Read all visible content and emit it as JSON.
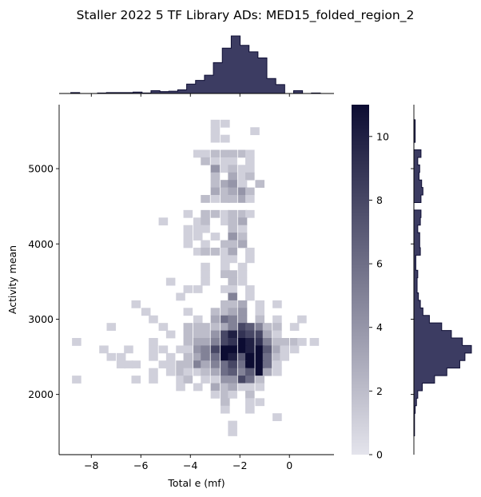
{
  "chart_data": {
    "type": "heatmap",
    "title": "Staller 2022 5 TF Library ADs: MED15_folded_region_2",
    "xlabel": "Total e (mf)",
    "ylabel": "Activity mean",
    "xlim": [
      -9.3,
      1.8
    ],
    "ylim": [
      1200,
      5850
    ],
    "x_ticks": [
      -8,
      -6,
      -4,
      -2,
      0
    ],
    "y_ticks": [
      2000,
      3000,
      4000,
      5000
    ],
    "x_tick_labels": [
      "−8",
      "−6",
      "−4",
      "−2",
      "0"
    ],
    "y_tick_labels": [
      "2000",
      "3000",
      "4000",
      "5000"
    ],
    "colorbar": {
      "min": 0,
      "max": 11,
      "ticks": [
        0,
        2,
        4,
        6,
        8,
        10
      ],
      "tick_labels": [
        "0",
        "2",
        "4",
        "6",
        "8",
        "10"
      ]
    },
    "colors": {
      "low": "#e4e4ec",
      "high": "#0c0c32",
      "marginal": "#3c3c62",
      "edge": "#0e0e34"
    },
    "bin_x_origin": -8.65,
    "bin_width": 0.36,
    "bin_y_origin": 1400,
    "bin_height": 100,
    "grid": false,
    "cells": [
      [
        -1.4,
        5500,
        1
      ],
      [
        -3.0,
        5600,
        1
      ],
      [
        -2.6,
        5600,
        1
      ],
      [
        -3.0,
        5500,
        1
      ],
      [
        -2.6,
        5400,
        1
      ],
      [
        -3.0,
        5400,
        1
      ],
      [
        -3.7,
        5200,
        1
      ],
      [
        -3.4,
        5200,
        1
      ],
      [
        -3.0,
        5200,
        2
      ],
      [
        -2.6,
        5200,
        2
      ],
      [
        -2.3,
        5200,
        2
      ],
      [
        -1.9,
        5200,
        2
      ],
      [
        -1.6,
        5200,
        1
      ],
      [
        -3.4,
        5100,
        2
      ],
      [
        -3.0,
        5100,
        1
      ],
      [
        -2.6,
        5100,
        1
      ],
      [
        -2.3,
        5100,
        1
      ],
      [
        -1.6,
        5100,
        1
      ],
      [
        -3.0,
        5000,
        4
      ],
      [
        -2.6,
        5000,
        1
      ],
      [
        -2.3,
        5000,
        2
      ],
      [
        -1.9,
        5000,
        1
      ],
      [
        -1.6,
        5000,
        1
      ],
      [
        -3.0,
        4900,
        2
      ],
      [
        -2.3,
        4900,
        3
      ],
      [
        -1.9,
        4900,
        1
      ],
      [
        -1.6,
        4900,
        2
      ],
      [
        -3.0,
        4800,
        2
      ],
      [
        -2.6,
        4800,
        3
      ],
      [
        -2.3,
        4800,
        4
      ],
      [
        -1.9,
        4800,
        1
      ],
      [
        -1.2,
        4800,
        2
      ],
      [
        -3.0,
        4700,
        3
      ],
      [
        -2.6,
        4700,
        2
      ],
      [
        -2.3,
        4700,
        3
      ],
      [
        -1.9,
        4700,
        4
      ],
      [
        -1.6,
        4700,
        2
      ],
      [
        -3.4,
        4600,
        2
      ],
      [
        -3.0,
        4600,
        1
      ],
      [
        -2.6,
        4600,
        2
      ],
      [
        -2.3,
        4600,
        2
      ],
      [
        -1.9,
        4600,
        3
      ],
      [
        -1.6,
        4600,
        1
      ],
      [
        -4.1,
        4400,
        1
      ],
      [
        -3.4,
        4400,
        2
      ],
      [
        -3.0,
        4400,
        2
      ],
      [
        -2.6,
        4400,
        1
      ],
      [
        -2.3,
        4400,
        2
      ],
      [
        -1.9,
        4400,
        2
      ],
      [
        -1.6,
        4400,
        1
      ],
      [
        -5.1,
        4300,
        1
      ],
      [
        -3.7,
        4300,
        1
      ],
      [
        -3.4,
        4300,
        2
      ],
      [
        -2.6,
        4300,
        1
      ],
      [
        -2.3,
        4300,
        2
      ],
      [
        -1.9,
        4300,
        3
      ],
      [
        -4.1,
        4200,
        1
      ],
      [
        -3.7,
        4200,
        1
      ],
      [
        -3.4,
        4200,
        1
      ],
      [
        -2.3,
        4200,
        2
      ],
      [
        -1.9,
        4200,
        1
      ],
      [
        -4.1,
        4100,
        1
      ],
      [
        -3.7,
        4100,
        1
      ],
      [
        -3.0,
        4100,
        1
      ],
      [
        -2.3,
        4100,
        4
      ],
      [
        -1.9,
        4100,
        2
      ],
      [
        -4.1,
        4000,
        1
      ],
      [
        -3.4,
        4000,
        1
      ],
      [
        -2.6,
        4000,
        2
      ],
      [
        -2.3,
        4000,
        2
      ],
      [
        -1.9,
        4000,
        3
      ],
      [
        -3.7,
        3900,
        1
      ],
      [
        -3.4,
        3900,
        2
      ],
      [
        -3.0,
        3900,
        2
      ],
      [
        -2.6,
        3900,
        1
      ],
      [
        -2.3,
        3900,
        3
      ],
      [
        -1.6,
        3900,
        1
      ],
      [
        -2.6,
        3800,
        1
      ],
      [
        -2.3,
        3800,
        1
      ],
      [
        -1.6,
        3800,
        1
      ],
      [
        -3.4,
        3700,
        1
      ],
      [
        -2.6,
        3700,
        1
      ],
      [
        -1.9,
        3700,
        1
      ],
      [
        -3.4,
        3600,
        1
      ],
      [
        -2.6,
        3600,
        2
      ],
      [
        -2.3,
        3600,
        2
      ],
      [
        -1.9,
        3600,
        1
      ],
      [
        -4.8,
        3500,
        1
      ],
      [
        -3.4,
        3500,
        1
      ],
      [
        -2.3,
        3500,
        2
      ],
      [
        -1.9,
        3500,
        1
      ],
      [
        -4.1,
        3400,
        1
      ],
      [
        -3.7,
        3400,
        1
      ],
      [
        -2.6,
        3400,
        1
      ],
      [
        -2.3,
        3400,
        1
      ],
      [
        -1.6,
        3400,
        1
      ],
      [
        -4.4,
        3300,
        1
      ],
      [
        -2.3,
        3300,
        5
      ],
      [
        -1.6,
        3300,
        1
      ],
      [
        -6.2,
        3200,
        1
      ],
      [
        -2.6,
        3200,
        2
      ],
      [
        -2.3,
        3200,
        2
      ],
      [
        -1.9,
        3200,
        3
      ],
      [
        -1.2,
        3200,
        1
      ],
      [
        -0.5,
        3200,
        1
      ],
      [
        -5.8,
        3100,
        1
      ],
      [
        -4.1,
        3100,
        1
      ],
      [
        -3.0,
        3100,
        2
      ],
      [
        -2.6,
        3100,
        2
      ],
      [
        -2.3,
        3100,
        3
      ],
      [
        -1.9,
        3100,
        4
      ],
      [
        -1.2,
        3100,
        1
      ],
      [
        -5.5,
        3000,
        1
      ],
      [
        -3.7,
        3000,
        1
      ],
      [
        -3.0,
        3000,
        3
      ],
      [
        -2.6,
        3000,
        6
      ],
      [
        -2.3,
        3000,
        5
      ],
      [
        -1.9,
        3000,
        4
      ],
      [
        -1.2,
        3000,
        2
      ],
      [
        -0.5,
        3000,
        1
      ],
      [
        0.5,
        3000,
        1
      ],
      [
        -7.2,
        2900,
        1
      ],
      [
        -5.1,
        2900,
        1
      ],
      [
        -4.1,
        2900,
        2
      ],
      [
        -3.7,
        2900,
        2
      ],
      [
        -3.4,
        2900,
        2
      ],
      [
        -3.0,
        2900,
        2
      ],
      [
        -2.6,
        2900,
        3
      ],
      [
        -2.3,
        2900,
        5
      ],
      [
        -1.9,
        2900,
        8
      ],
      [
        -1.6,
        2900,
        7
      ],
      [
        -1.2,
        2900,
        5
      ],
      [
        -0.9,
        2900,
        2
      ],
      [
        -0.5,
        2900,
        2
      ],
      [
        0.2,
        2900,
        1
      ],
      [
        -4.8,
        2800,
        1
      ],
      [
        -4.1,
        2800,
        2
      ],
      [
        -3.7,
        2800,
        2
      ],
      [
        -3.4,
        2800,
        2
      ],
      [
        -3.0,
        2800,
        4
      ],
      [
        -2.6,
        2800,
        8
      ],
      [
        -2.3,
        2800,
        10
      ],
      [
        -1.9,
        2800,
        9
      ],
      [
        -1.6,
        2800,
        8
      ],
      [
        -1.2,
        2800,
        8
      ],
      [
        -0.9,
        2800,
        3
      ],
      [
        -0.5,
        2800,
        1
      ],
      [
        -8.6,
        2700,
        1
      ],
      [
        -5.5,
        2700,
        1
      ],
      [
        -4.1,
        2700,
        2
      ],
      [
        -3.7,
        2700,
        3
      ],
      [
        -3.4,
        2700,
        3
      ],
      [
        -3.0,
        2700,
        5
      ],
      [
        -2.6,
        2700,
        8
      ],
      [
        -2.3,
        2700,
        9
      ],
      [
        -1.9,
        2700,
        11
      ],
      [
        -1.6,
        2700,
        10
      ],
      [
        -1.2,
        2700,
        9
      ],
      [
        -0.9,
        2700,
        5
      ],
      [
        -0.5,
        2700,
        2
      ],
      [
        -0.2,
        2700,
        2
      ],
      [
        0.2,
        2700,
        2
      ],
      [
        0.5,
        2700,
        1
      ],
      [
        1.0,
        2700,
        1
      ],
      [
        -7.5,
        2600,
        1
      ],
      [
        -6.5,
        2600,
        1
      ],
      [
        -5.5,
        2600,
        1
      ],
      [
        -5.1,
        2600,
        1
      ],
      [
        -4.4,
        2600,
        1
      ],
      [
        -4.1,
        2600,
        1
      ],
      [
        -3.7,
        2600,
        4
      ],
      [
        -3.4,
        2600,
        5
      ],
      [
        -3.0,
        2600,
        8
      ],
      [
        -2.6,
        2600,
        11
      ],
      [
        -2.3,
        2600,
        11
      ],
      [
        -1.9,
        2600,
        11
      ],
      [
        -1.6,
        2600,
        10
      ],
      [
        -1.2,
        2600,
        11
      ],
      [
        -0.9,
        2600,
        7
      ],
      [
        -0.5,
        2600,
        3
      ],
      [
        -0.2,
        2600,
        1
      ],
      [
        0.2,
        2600,
        1
      ],
      [
        -7.2,
        2500,
        1
      ],
      [
        -6.8,
        2500,
        1
      ],
      [
        -5.5,
        2500,
        1
      ],
      [
        -4.8,
        2500,
        1
      ],
      [
        -4.1,
        2500,
        2
      ],
      [
        -3.7,
        2500,
        3
      ],
      [
        -3.4,
        2500,
        5
      ],
      [
        -3.0,
        2500,
        6
      ],
      [
        -2.6,
        2500,
        11
      ],
      [
        -2.3,
        2500,
        10
      ],
      [
        -1.9,
        2500,
        7
      ],
      [
        -1.6,
        2500,
        11
      ],
      [
        -1.2,
        2500,
        11
      ],
      [
        -0.9,
        2500,
        6
      ],
      [
        -0.5,
        2500,
        2
      ],
      [
        -0.2,
        2500,
        1
      ],
      [
        -6.8,
        2400,
        1
      ],
      [
        -6.5,
        2400,
        1
      ],
      [
        -6.2,
        2400,
        1
      ],
      [
        -5.1,
        2400,
        1
      ],
      [
        -4.8,
        2400,
        1
      ],
      [
        -4.4,
        2400,
        2
      ],
      [
        -4.1,
        2400,
        2
      ],
      [
        -3.7,
        2400,
        5
      ],
      [
        -3.4,
        2400,
        3
      ],
      [
        -3.0,
        2400,
        5
      ],
      [
        -2.6,
        2400,
        6
      ],
      [
        -2.3,
        2400,
        8
      ],
      [
        -1.9,
        2400,
        6
      ],
      [
        -1.6,
        2400,
        11
      ],
      [
        -1.2,
        2400,
        11
      ],
      [
        -0.9,
        2400,
        6
      ],
      [
        -0.5,
        2400,
        1
      ],
      [
        -5.5,
        2300,
        1
      ],
      [
        -4.8,
        2300,
        1
      ],
      [
        -4.4,
        2300,
        2
      ],
      [
        -4.1,
        2300,
        1
      ],
      [
        -3.7,
        2300,
        1
      ],
      [
        -3.4,
        2300,
        2
      ],
      [
        -3.0,
        2300,
        3
      ],
      [
        -2.6,
        2300,
        6
      ],
      [
        -2.3,
        2300,
        7
      ],
      [
        -1.9,
        2300,
        5
      ],
      [
        -1.6,
        2300,
        7
      ],
      [
        -1.2,
        2300,
        11
      ],
      [
        -0.9,
        2300,
        3
      ],
      [
        -0.5,
        2300,
        1
      ],
      [
        -8.6,
        2200,
        1
      ],
      [
        -6.2,
        2200,
        1
      ],
      [
        -5.5,
        2200,
        1
      ],
      [
        -4.4,
        2200,
        1
      ],
      [
        -4.1,
        2200,
        2
      ],
      [
        -3.4,
        2200,
        1
      ],
      [
        -3.0,
        2200,
        1
      ],
      [
        -2.6,
        2200,
        4
      ],
      [
        -2.3,
        2200,
        4
      ],
      [
        -1.9,
        2200,
        8
      ],
      [
        -1.6,
        2200,
        6
      ],
      [
        -1.2,
        2200,
        2
      ],
      [
        -4.4,
        2100,
        1
      ],
      [
        -3.7,
        2100,
        1
      ],
      [
        -3.0,
        2100,
        3
      ],
      [
        -2.6,
        2100,
        2
      ],
      [
        -2.3,
        2100,
        3
      ],
      [
        -1.9,
        2100,
        1
      ],
      [
        -1.6,
        2100,
        1
      ],
      [
        -1.2,
        2100,
        1
      ],
      [
        -3.0,
        2000,
        1
      ],
      [
        -2.6,
        2000,
        2
      ],
      [
        -2.3,
        2000,
        1
      ],
      [
        -1.6,
        2000,
        2
      ],
      [
        -2.6,
        1900,
        2
      ],
      [
        -1.6,
        1900,
        1
      ],
      [
        -1.2,
        1900,
        1
      ],
      [
        -2.6,
        1800,
        1
      ],
      [
        -1.6,
        1800,
        1
      ],
      [
        -0.5,
        1700,
        1
      ],
      [
        -2.3,
        1600,
        1
      ],
      [
        -2.3,
        1500,
        1
      ]
    ]
  }
}
